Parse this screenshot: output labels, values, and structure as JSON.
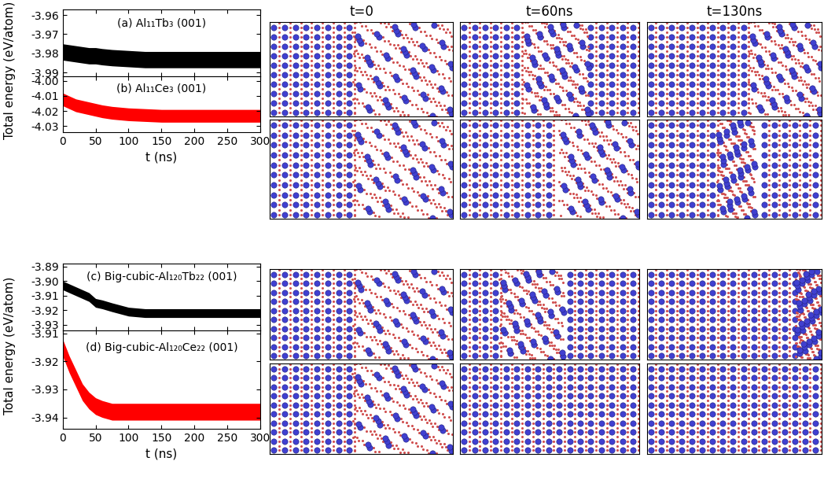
{
  "chart_data": [
    {
      "type": "band",
      "title": "(a) Al₁₁Tb₃ (001)",
      "ylabel": "Total energy (eV/atom)",
      "tick_labels": "y",
      "xlim": [
        0,
        300
      ],
      "xticks": [
        0,
        50,
        100,
        150,
        200,
        250,
        300
      ],
      "ylim": [
        -3.992,
        -3.957
      ],
      "yticks": [
        -3.96,
        -3.97,
        -3.98,
        -3.99
      ],
      "series": [
        {
          "color": "#000000",
          "x": [
            0,
            10,
            20,
            30,
            40,
            50,
            60,
            75,
            100,
            125,
            150,
            200,
            250,
            300
          ],
          "upper": [
            -3.975,
            -3.9755,
            -3.976,
            -3.9765,
            -3.977,
            -3.977,
            -3.9775,
            -3.978,
            -3.9785,
            -3.979,
            -3.979,
            -3.979,
            -3.979,
            -3.979
          ],
          "lower": [
            -3.9835,
            -3.984,
            -3.9845,
            -3.985,
            -3.9855,
            -3.9855,
            -3.986,
            -3.9865,
            -3.987,
            -3.9875,
            -3.9875,
            -3.9875,
            -3.9875,
            -3.9875
          ]
        }
      ]
    },
    {
      "type": "band",
      "title": "(b) Al₁₁Ce₃ (001)",
      "xlabel": "t (ns)",
      "xlim": [
        0,
        300
      ],
      "xticks": [
        0,
        50,
        100,
        150,
        200,
        250,
        300
      ],
      "ylim": [
        -4.034,
        -3.997
      ],
      "yticks": [
        {
          "value": -4.0,
          "label": "-4.00"
        },
        -4.01,
        -4.02,
        -4.03
      ],
      "series": [
        {
          "color": "#ff0000",
          "x": [
            0,
            10,
            20,
            30,
            40,
            50,
            60,
            75,
            100,
            125,
            150,
            200,
            250,
            300
          ],
          "upper": [
            -4.008,
            -4.01,
            -4.012,
            -4.013,
            -4.014,
            -4.015,
            -4.016,
            -4.017,
            -4.018,
            -4.0185,
            -4.019,
            -4.019,
            -4.019,
            -4.019
          ],
          "lower": [
            -4.0165,
            -4.0185,
            -4.0205,
            -4.0215,
            -4.0225,
            -4.0235,
            -4.0245,
            -4.0255,
            -4.0265,
            -4.027,
            -4.0275,
            -4.0275,
            -4.0275,
            -4.0275
          ]
        }
      ]
    },
    {
      "type": "band",
      "title": "(c) Big-cubic-Al₁₂₀Tb₂₂ (001)",
      "ylabel": "Total energy (eV/atom)",
      "tick_labels": "y",
      "xlim": [
        0,
        300
      ],
      "xticks": [
        0,
        50,
        100,
        150,
        200,
        250,
        300
      ],
      "ylim": [
        -3.934,
        -3.888
      ],
      "yticks": [
        -3.89,
        {
          "value": -3.9,
          "label": "-3.90"
        },
        -3.91,
        -3.92,
        -3.93
      ],
      "series": [
        {
          "color": "#000000",
          "x": [
            0,
            10,
            20,
            30,
            40,
            50,
            60,
            75,
            100,
            125,
            150,
            200,
            250,
            300
          ],
          "upper": [
            -3.9,
            -3.902,
            -3.904,
            -3.906,
            -3.908,
            -3.912,
            -3.913,
            -3.915,
            -3.918,
            -3.919,
            -3.919,
            -3.919,
            -3.919,
            -3.919
          ],
          "lower": [
            -3.906,
            -3.908,
            -3.91,
            -3.912,
            -3.914,
            -3.918,
            -3.919,
            -3.921,
            -3.924,
            -3.925,
            -3.925,
            -3.925,
            -3.925,
            -3.925
          ]
        }
      ]
    },
    {
      "type": "band",
      "title": "(d) Big-cubic-Al₁₂₀Ce₂₂ (001)",
      "xlabel": "t (ns)",
      "xlim": [
        0,
        300
      ],
      "xticks": [
        0,
        50,
        100,
        150,
        200,
        250,
        300
      ],
      "ylim": [
        -3.944,
        -3.909
      ],
      "yticks": [
        -3.91,
        -3.92,
        -3.93,
        -3.94
      ],
      "series": [
        {
          "color": "#ff0000",
          "x": [
            0,
            10,
            20,
            30,
            40,
            50,
            60,
            75,
            100,
            125,
            150,
            200,
            250,
            300
          ],
          "upper": [
            -3.912,
            -3.918,
            -3.923,
            -3.928,
            -3.931,
            -3.933,
            -3.934,
            -3.935,
            -3.935,
            -3.935,
            -3.935,
            -3.935,
            -3.935,
            -3.935
          ],
          "lower": [
            -3.918,
            -3.924,
            -3.929,
            -3.934,
            -3.937,
            -3.939,
            -3.94,
            -3.941,
            -3.941,
            -3.941,
            -3.941,
            -3.941,
            -3.941,
            -3.941
          ]
        }
      ]
    }
  ],
  "snapshot_headers": [
    "t=0",
    "t=60ns",
    "t=130ns"
  ]
}
